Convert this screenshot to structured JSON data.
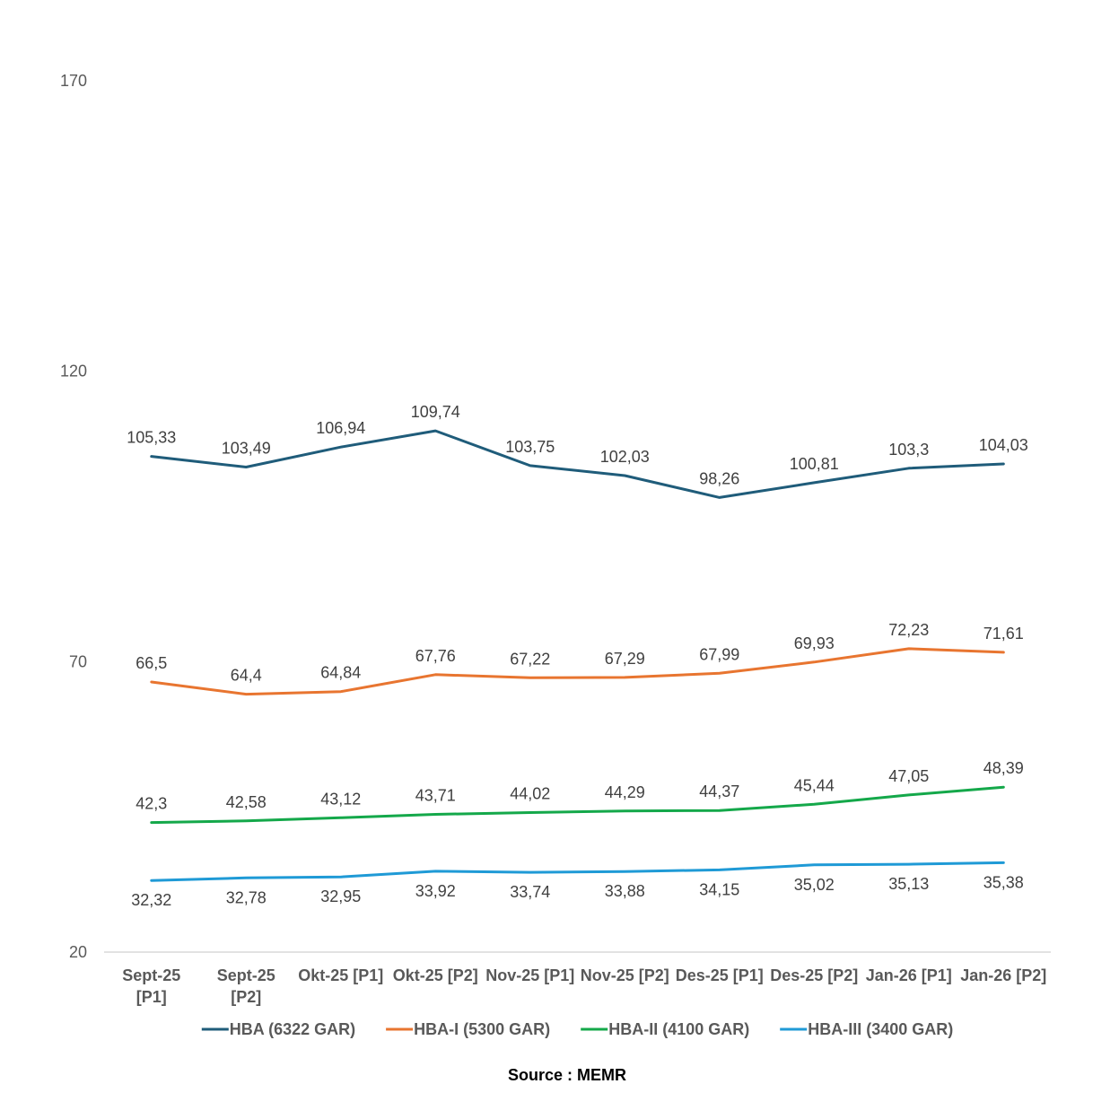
{
  "chart_data": {
    "type": "line",
    "title": "",
    "xlabel": "",
    "ylabel": "",
    "ylim": [
      20,
      170
    ],
    "yticks": [
      20,
      70,
      120,
      170
    ],
    "grid": false,
    "legend_position": "bottom",
    "categories": [
      [
        "Sept-25",
        "[P1]"
      ],
      [
        "Sept-25",
        "[P2]"
      ],
      [
        "Okt-25 [P1]"
      ],
      [
        "Okt-25 [P2]"
      ],
      [
        "Nov-25 [P1]"
      ],
      [
        "Nov-25 [P2]"
      ],
      [
        "Des-25 [P1]"
      ],
      [
        "Des-25 [P2]"
      ],
      [
        "Jan-26 [P1]"
      ],
      [
        "Jan-26 [P2]"
      ]
    ],
    "series": [
      {
        "name": "HBA (6322 GAR)",
        "color": "#1f5c7a",
        "label_position": "above",
        "values": [
          105.33,
          103.49,
          106.94,
          109.74,
          103.75,
          102.03,
          98.26,
          100.81,
          103.3,
          104.03
        ],
        "labels": [
          "105,33",
          "103,49",
          "106,94",
          "109,74",
          "103,75",
          "102,03",
          "98,26",
          "100,81",
          "103,3",
          "104,03"
        ]
      },
      {
        "name": "HBA-I (5300 GAR)",
        "color": "#e87530",
        "label_position": "above",
        "values": [
          66.5,
          64.4,
          64.84,
          67.76,
          67.22,
          67.29,
          67.99,
          69.93,
          72.23,
          71.61
        ],
        "labels": [
          "66,5",
          "64,4",
          "64,84",
          "67,76",
          "67,22",
          "67,29",
          "67,99",
          "69,93",
          "72,23",
          "71,61"
        ]
      },
      {
        "name": "HBA-II (4100 GAR)",
        "color": "#14a84a",
        "label_position": "above",
        "values": [
          42.3,
          42.58,
          43.12,
          43.71,
          44.02,
          44.29,
          44.37,
          45.44,
          47.05,
          48.39
        ],
        "labels": [
          "42,3",
          "42,58",
          "43,12",
          "43,71",
          "44,02",
          "44,29",
          "44,37",
          "45,44",
          "47,05",
          "48,39"
        ]
      },
      {
        "name": "HBA-III (3400 GAR)",
        "color": "#1f9ad6",
        "label_position": "below",
        "values": [
          32.32,
          32.78,
          32.95,
          33.92,
          33.74,
          33.88,
          34.15,
          35.02,
          35.13,
          35.38
        ],
        "labels": [
          "32,32",
          "32,78",
          "32,95",
          "33,92",
          "33,74",
          "33,88",
          "34,15",
          "35,02",
          "35,13",
          "35,38"
        ]
      }
    ]
  },
  "source_text": "Source : MEMR"
}
